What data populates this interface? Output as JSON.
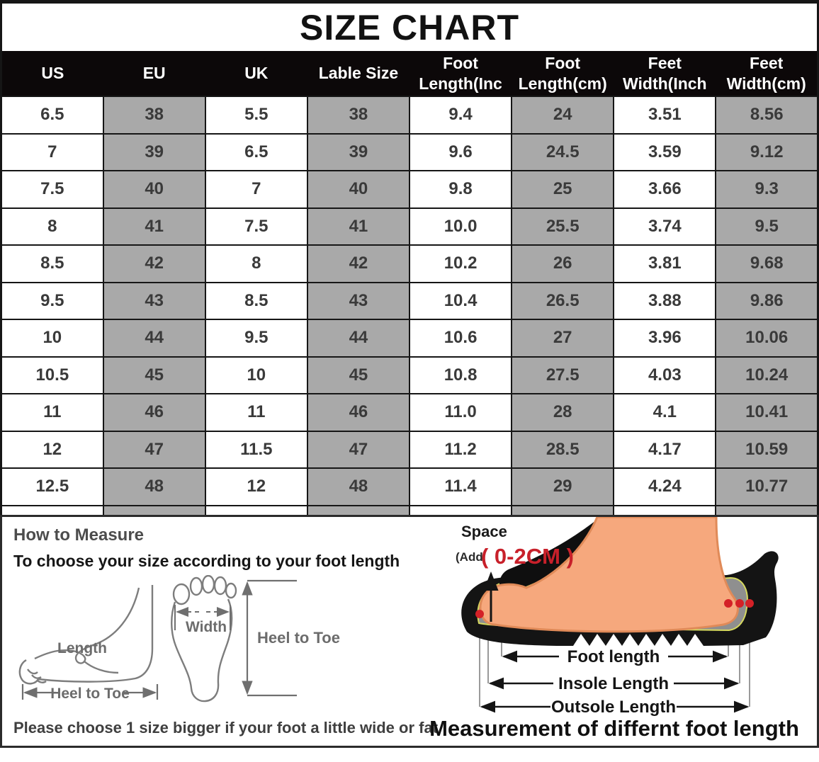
{
  "title": "SIZE CHART",
  "table": {
    "headers": [
      "US",
      "EU",
      "UK",
      "Lable Size",
      "Foot\nLength(Inc",
      "Foot\nLength(cm)",
      "Feet\nWidth(Inch",
      "Feet\nWidth(cm)"
    ],
    "rows": [
      [
        "6.5",
        "38",
        "5.5",
        "38",
        "9.4",
        "24",
        "3.51",
        "8.56"
      ],
      [
        "7",
        "39",
        "6.5",
        "39",
        "9.6",
        "24.5",
        "3.59",
        "9.12"
      ],
      [
        "7.5",
        "40",
        "7",
        "40",
        "9.8",
        "25",
        "3.66",
        "9.3"
      ],
      [
        "8",
        "41",
        "7.5",
        "41",
        "10.0",
        "25.5",
        "3.74",
        "9.5"
      ],
      [
        "8.5",
        "42",
        "8",
        "42",
        "10.2",
        "26",
        "3.81",
        "9.68"
      ],
      [
        "9.5",
        "43",
        "8.5",
        "43",
        "10.4",
        "26.5",
        "3.88",
        "9.86"
      ],
      [
        "10",
        "44",
        "9.5",
        "44",
        "10.6",
        "27",
        "3.96",
        "10.06"
      ],
      [
        "10.5",
        "45",
        "10",
        "45",
        "10.8",
        "27.5",
        "4.03",
        "10.24"
      ],
      [
        "11",
        "46",
        "11",
        "46",
        "11.0",
        "28",
        "4.1",
        "10.41"
      ],
      [
        "12",
        "47",
        "11.5",
        "47",
        "11.2",
        "28.5",
        "4.17",
        "10.59"
      ],
      [
        "12.5",
        "48",
        "12",
        "48",
        "11.4",
        "29",
        "4.24",
        "10.77"
      ]
    ]
  },
  "chart_data": {
    "type": "table",
    "title": "SIZE CHART",
    "columns": [
      "US",
      "EU",
      "UK",
      "Lable Size",
      "Foot Length(Inc",
      "Foot Length(cm)",
      "Feet Width(Inch",
      "Feet Width(cm)"
    ],
    "rows": [
      [
        6.5,
        38,
        5.5,
        38,
        9.4,
        24,
        3.51,
        8.56
      ],
      [
        7,
        39,
        6.5,
        39,
        9.6,
        24.5,
        3.59,
        9.12
      ],
      [
        7.5,
        40,
        7,
        40,
        9.8,
        25,
        3.66,
        9.3
      ],
      [
        8,
        41,
        7.5,
        41,
        10.0,
        25.5,
        3.74,
        9.5
      ],
      [
        8.5,
        42,
        8,
        42,
        10.2,
        26,
        3.81,
        9.68
      ],
      [
        9.5,
        43,
        8.5,
        43,
        10.4,
        26.5,
        3.88,
        9.86
      ],
      [
        10,
        44,
        9.5,
        44,
        10.6,
        27,
        3.96,
        10.06
      ],
      [
        10.5,
        45,
        10,
        45,
        10.8,
        27.5,
        4.03,
        10.24
      ],
      [
        11,
        46,
        11,
        46,
        11.0,
        28,
        4.1,
        10.41
      ],
      [
        12,
        47,
        11.5,
        47,
        11.2,
        28.5,
        4.17,
        10.59
      ],
      [
        12.5,
        48,
        12,
        48,
        11.4,
        29,
        4.24,
        10.77
      ]
    ]
  },
  "measure_guide": {
    "heading": "How to Measure",
    "subheading": "To choose your size according to your foot length",
    "length_label": "Length",
    "heel_to_toe_label": "Heel to Toe",
    "width_label": "Width",
    "heel_to_toe_vertical_label": "Heel to Toe",
    "note": "Please choose 1 size bigger if your foot a little wide or fat"
  },
  "foot_diagram": {
    "space_label": "Space",
    "add_label": "(Add",
    "range_label": "( 0-2CM )",
    "foot_length_label": "Foot length",
    "insole_length_label": "Insole Length",
    "outsole_length_label": "Outsole Length",
    "caption": "Measurement of differnt foot length"
  },
  "colors": {
    "header_bg": "#0c0809",
    "cell_gray": "#a9a9a9",
    "border": "#161616",
    "accent_red": "#c8202a",
    "foot_skin": "#f6a87d",
    "insole_gray": "#8f8f8f",
    "trim_green": "#d6d95f"
  }
}
